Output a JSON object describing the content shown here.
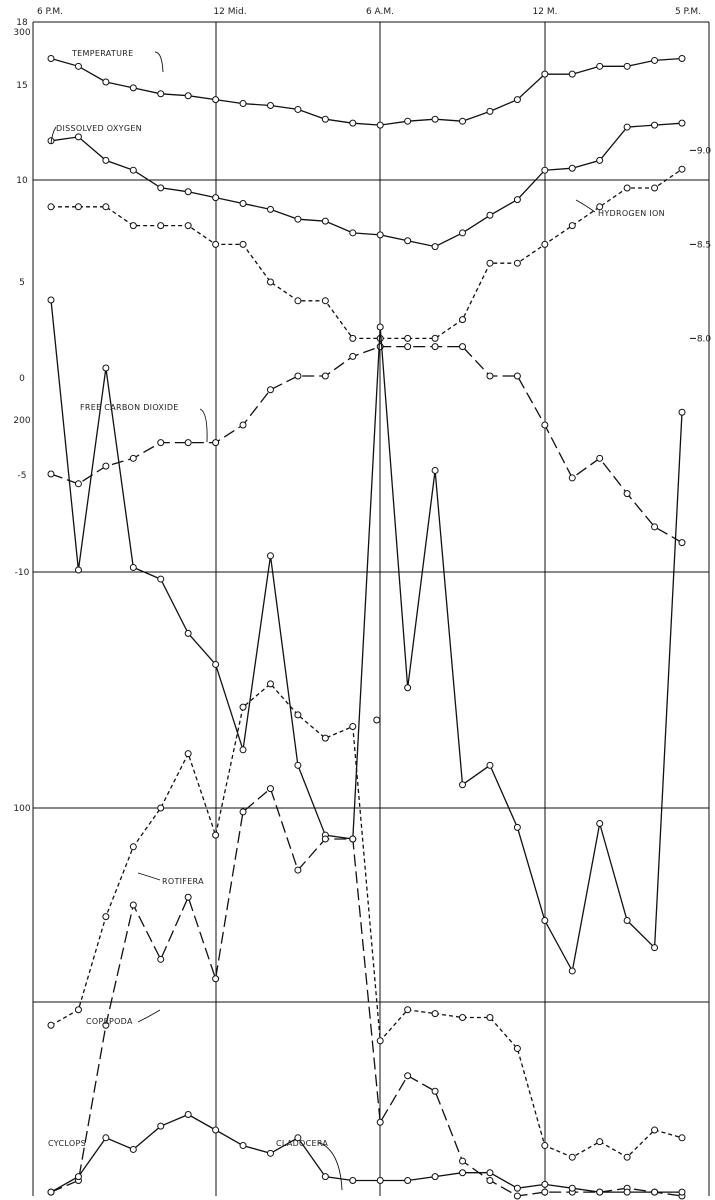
{
  "chart_data": [
    {
      "type": "line",
      "panel": "physical-chemical",
      "x_ticks": [
        "6 P.M.",
        "12 Mid.",
        "6 A.M.",
        "12 M.",
        "5 P.M."
      ],
      "x": [
        0,
        1,
        2,
        3,
        4,
        5,
        6,
        7,
        8,
        9,
        10,
        11,
        12,
        13,
        14,
        15,
        16,
        17,
        18,
        19,
        20,
        21,
        22,
        23
      ],
      "left_ticks": [
        "18",
        "15",
        "10",
        "5",
        "0",
        "-5",
        "-10"
      ],
      "left_range": [
        -10,
        18
      ],
      "right_ticks": [
        "9.0",
        "8.5",
        "8.0"
      ],
      "right_range": [
        7.5,
        9.1
      ],
      "series": [
        {
          "name": "TEMPERATURE",
          "axis": "left",
          "dash": "solid",
          "values": [
            16.2,
            15.8,
            15.0,
            14.7,
            14.4,
            14.3,
            14.1,
            13.9,
            13.8,
            13.6,
            13.1,
            12.9,
            12.8,
            13.0,
            13.1,
            13.0,
            13.5,
            14.1,
            15.4,
            15.4,
            15.8,
            15.8,
            16.1,
            16.2
          ]
        },
        {
          "name": "DISSOLVED OXYGEN",
          "axis": "left",
          "dash": "solid",
          "values": [
            12.0,
            12.2,
            11.0,
            10.5,
            9.6,
            9.4,
            9.1,
            8.8,
            8.5,
            8.0,
            7.9,
            7.3,
            7.2,
            6.9,
            6.6,
            7.3,
            8.2,
            9.0,
            10.5,
            10.6,
            11.0,
            12.7,
            12.8,
            12.9
          ]
        },
        {
          "name": "HYDROGEN ION",
          "axis": "right",
          "dash": "short",
          "values": [
            8.7,
            8.7,
            8.7,
            8.6,
            8.6,
            8.6,
            8.5,
            8.5,
            8.3,
            8.2,
            8.2,
            8.0,
            8.0,
            8.0,
            8.0,
            8.1,
            8.4,
            8.4,
            8.5,
            8.6,
            8.7,
            8.8,
            8.8,
            8.9
          ]
        },
        {
          "name": "FREE CARBON DIOXIDE",
          "axis": "left",
          "dash": "long",
          "values": [
            -5.0,
            -5.5,
            -4.6,
            -4.2,
            -3.4,
            -3.4,
            -3.4,
            -2.5,
            -0.7,
            0.0,
            0.0,
            1.0,
            1.5,
            1.5,
            1.5,
            1.5,
            0.0,
            0.0,
            -2.5,
            -5.2,
            -4.2,
            -6.0,
            -7.7,
            -8.5
          ]
        }
      ]
    },
    {
      "type": "line",
      "panel": "plankton",
      "x": [
        0,
        1,
        2,
        3,
        4,
        5,
        6,
        7,
        8,
        9,
        10,
        11,
        12,
        13,
        14,
        15,
        16,
        17,
        18,
        19,
        20,
        21,
        22,
        23
      ],
      "y_ticks": [
        "300",
        "200",
        "100"
      ],
      "y_range": [
        0,
        305
      ],
      "series": [
        {
          "name": "ROTIFERA",
          "dash": "solid",
          "values": [
            null,
            null,
            null,
            null,
            null,
            null,
            null,
            null,
            null,
            null,
            null,
            null,
            null,
            null,
            null,
            null,
            null,
            null,
            null,
            null,
            null,
            null,
            null,
            null
          ],
          "points": [
            [
              0,
              261
            ],
            [
              1,
              148
            ],
            [
              2,
              222
            ],
            [
              3,
              162
            ],
            [
              4,
              159
            ],
            [
              5,
              145
            ],
            [
              6,
              137
            ],
            [
              7,
              115
            ],
            [
              8,
              165
            ],
            [
              9,
              111
            ],
            [
              10,
              93
            ],
            [
              11,
              null
            ],
            [
              12,
              null
            ],
            [
              13,
              null
            ],
            [
              14,
              null
            ],
            [
              15,
              null
            ],
            [
              16,
              null
            ],
            [
              17,
              null
            ],
            [
              18,
              null
            ],
            [
              19,
              null
            ],
            [
              20,
              null
            ],
            [
              21,
              null
            ],
            [
              22,
              null
            ],
            [
              23,
              null
            ]
          ]
        },
        {
          "name": "COPEPODA",
          "dash": "short",
          "values": [
            44,
            48,
            72,
            90,
            100,
            114,
            93,
            126,
            132,
            124,
            118,
            121,
            40,
            48,
            47,
            46,
            46,
            38,
            13,
            10,
            14,
            10,
            17,
            15
          ]
        },
        {
          "name": "CLADOCERA",
          "dash": "long",
          "values": [
            1,
            4,
            44,
            75,
            61,
            77,
            56,
            99,
            105,
            84,
            92,
            92,
            19,
            31,
            27,
            9,
            4,
            0,
            1,
            1,
            1,
            2,
            1,
            0
          ]
        },
        {
          "name": "CYCLOPS",
          "dash": "solid",
          "values": [
            1,
            5,
            15,
            12,
            18,
            21,
            17,
            13,
            11,
            15,
            5,
            4,
            4,
            4,
            5,
            6,
            6,
            2,
            3,
            2,
            1,
            1,
            1,
            1
          ]
        }
      ]
    }
  ],
  "rotifera_full": [
    261,
    148,
    222,
    162,
    159,
    145,
    137,
    115,
    165,
    111,
    93,
    92,
    255,
    131,
    187,
    106,
    111,
    95,
    71,
    58,
    96,
    71,
    64,
    202
  ],
  "label_text": {
    "temperature": "TEMPERATURE",
    "oxygen": "DISSOLVED OXYGEN",
    "hydrogen": "HYDROGEN ION",
    "co2": "FREE CARBON DIOXIDE",
    "rotifera": "ROTIFERA",
    "copepoda": "COPEPODA",
    "cyclops": "CYCLOPS",
    "cladocera": "CLADOCERA"
  }
}
